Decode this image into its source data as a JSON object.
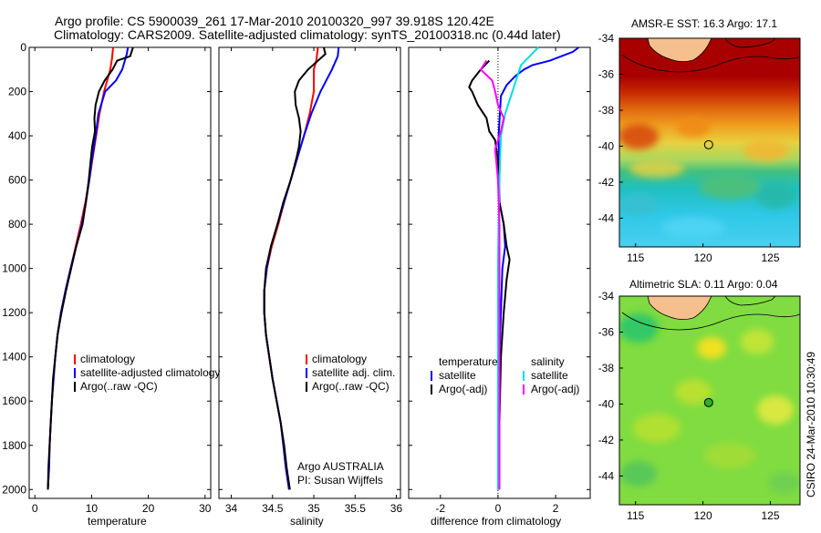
{
  "header": {
    "line1": "Argo profile: CS 5900039_261 17-Mar-2010 20100320_997 39.918S 120.42E",
    "line2": "Climatology: CARS2009. Satellite-adjusted climatology: synTS_20100318.nc (0.44d later)"
  },
  "colors": {
    "climatology": "#ff0000",
    "satellite": "#0000ff",
    "argo": "#000000",
    "sat_diff": "#00dede",
    "argo_sal_diff": "#ff00ff"
  },
  "credit": "CSIRO 24-Mar-2010 10:30:49",
  "chart_data": [
    {
      "id": "temperature",
      "type": "line",
      "xlabel": "temperature",
      "xlim": [
        -1,
        31
      ],
      "ylim": [
        2040,
        0
      ],
      "xticks": [
        "0",
        "10",
        "20",
        "30"
      ],
      "yticks": [
        "0",
        "200",
        "400",
        "600",
        "800",
        "1000",
        "1200",
        "1400",
        "1600",
        "1800",
        "2000"
      ],
      "legend": [
        {
          "color": "#ff0000",
          "label": "climatology"
        },
        {
          "color": "#0000ff",
          "label": "satellite-adjusted climatology"
        },
        {
          "color": "#000000",
          "label": "Argo(..raw -QC)"
        }
      ],
      "series": [
        {
          "name": "climatology",
          "color": "#ff0000",
          "points": [
            [
              13.8,
              0
            ],
            [
              13.6,
              50
            ],
            [
              13.3,
              100
            ],
            [
              12.2,
              200
            ],
            [
              11.4,
              300
            ],
            [
              10.8,
              400
            ],
            [
              10.2,
              500
            ],
            [
              9.6,
              600
            ],
            [
              8.9,
              700
            ],
            [
              8.1,
              800
            ],
            [
              7.2,
              900
            ],
            [
              6.3,
              1000
            ],
            [
              5.4,
              1100
            ],
            [
              4.6,
              1200
            ],
            [
              4.0,
              1300
            ],
            [
              3.6,
              1400
            ],
            [
              3.3,
              1500
            ],
            [
              3.0,
              1600
            ],
            [
              2.8,
              1700
            ],
            [
              2.6,
              1800
            ],
            [
              2.5,
              1900
            ],
            [
              2.3,
              2000
            ]
          ]
        },
        {
          "name": "satellite-adjusted climatology",
          "color": "#0000ff",
          "points": [
            [
              16.4,
              0
            ],
            [
              16.2,
              30
            ],
            [
              15.4,
              100
            ],
            [
              14.3,
              150
            ],
            [
              12.4,
              200
            ],
            [
              11.2,
              300
            ],
            [
              10.7,
              400
            ],
            [
              10.1,
              500
            ],
            [
              9.6,
              600
            ],
            [
              9.0,
              700
            ],
            [
              8.3,
              800
            ],
            [
              7.3,
              900
            ],
            [
              6.3,
              1000
            ],
            [
              5.4,
              1100
            ],
            [
              4.6,
              1200
            ],
            [
              4.0,
              1300
            ],
            [
              3.6,
              1400
            ],
            [
              3.3,
              1500
            ],
            [
              3.0,
              1600
            ],
            [
              2.8,
              1700
            ],
            [
              2.6,
              1800
            ],
            [
              2.5,
              1900
            ],
            [
              2.3,
              2000
            ]
          ]
        },
        {
          "name": "Argo(..raw -QC)",
          "color": "#000000",
          "points": [
            [
              17.3,
              0
            ],
            [
              16.8,
              40
            ],
            [
              14.5,
              60
            ],
            [
              13.7,
              100
            ],
            [
              12.3,
              150
            ],
            [
              11.3,
              200
            ],
            [
              10.7,
              260
            ],
            [
              10.5,
              320
            ],
            [
              10.6,
              380
            ],
            [
              10.1,
              450
            ],
            [
              9.8,
              520
            ],
            [
              9.5,
              600
            ],
            [
              9.0,
              700
            ],
            [
              8.4,
              800
            ],
            [
              7.3,
              900
            ],
            [
              6.4,
              1000
            ],
            [
              5.5,
              1100
            ],
            [
              4.7,
              1200
            ],
            [
              4.0,
              1300
            ],
            [
              3.6,
              1400
            ],
            [
              3.2,
              1500
            ],
            [
              3.0,
              1600
            ],
            [
              2.8,
              1700
            ],
            [
              2.6,
              1800
            ],
            [
              2.4,
              1900
            ],
            [
              2.3,
              2000
            ]
          ]
        }
      ]
    },
    {
      "id": "salinity",
      "type": "line",
      "xlabel": "salinity",
      "xlim": [
        33.85,
        36.05
      ],
      "ylim": [
        2040,
        0
      ],
      "xticks": [
        "34",
        "34.5",
        "35",
        "35.5",
        "36"
      ],
      "legend": [
        {
          "color": "#ff0000",
          "label": "climatology"
        },
        {
          "color": "#0000ff",
          "label": "satellite adj. clim."
        },
        {
          "color": "#000000",
          "label": "Argo(..raw -QC)"
        }
      ],
      "annotation": [
        "Argo AUSTRALIA",
        "PI: Susan Wijffels"
      ],
      "series": [
        {
          "name": "climatology",
          "color": "#ff0000",
          "points": [
            [
              35.05,
              0
            ],
            [
              35.03,
              60
            ],
            [
              35.0,
              100
            ],
            [
              35.0,
              200
            ],
            [
              34.95,
              300
            ],
            [
              34.88,
              400
            ],
            [
              34.8,
              500
            ],
            [
              34.72,
              600
            ],
            [
              34.64,
              700
            ],
            [
              34.57,
              800
            ],
            [
              34.49,
              900
            ],
            [
              34.43,
              1000
            ],
            [
              34.4,
              1100
            ],
            [
              34.4,
              1200
            ],
            [
              34.42,
              1300
            ],
            [
              34.46,
              1400
            ],
            [
              34.5,
              1500
            ],
            [
              34.55,
              1600
            ],
            [
              34.6,
              1700
            ],
            [
              34.63,
              1800
            ],
            [
              34.66,
              1900
            ],
            [
              34.7,
              2000
            ]
          ]
        },
        {
          "name": "satellite adj. clim.",
          "color": "#0000ff",
          "points": [
            [
              35.3,
              0
            ],
            [
              35.29,
              40
            ],
            [
              35.22,
              100
            ],
            [
              35.08,
              200
            ],
            [
              34.97,
              300
            ],
            [
              34.88,
              400
            ],
            [
              34.8,
              500
            ],
            [
              34.72,
              600
            ],
            [
              34.64,
              700
            ],
            [
              34.56,
              800
            ],
            [
              34.48,
              900
            ],
            [
              34.43,
              1000
            ],
            [
              34.4,
              1100
            ],
            [
              34.4,
              1200
            ],
            [
              34.42,
              1300
            ],
            [
              34.46,
              1400
            ],
            [
              34.5,
              1500
            ],
            [
              34.55,
              1600
            ],
            [
              34.6,
              1700
            ],
            [
              34.63,
              1800
            ],
            [
              34.66,
              1900
            ],
            [
              34.7,
              2000
            ]
          ]
        },
        {
          "name": "Argo(..raw -QC)",
          "color": "#000000",
          "points": [
            [
              35.12,
              0
            ],
            [
              35.14,
              30
            ],
            [
              35.05,
              60
            ],
            [
              34.93,
              100
            ],
            [
              34.82,
              150
            ],
            [
              34.77,
              200
            ],
            [
              34.78,
              260
            ],
            [
              34.82,
              320
            ],
            [
              34.84,
              380
            ],
            [
              34.82,
              450
            ],
            [
              34.79,
              500
            ],
            [
              34.72,
              600
            ],
            [
              34.63,
              700
            ],
            [
              34.56,
              800
            ],
            [
              34.48,
              900
            ],
            [
              34.42,
              1000
            ],
            [
              34.4,
              1100
            ],
            [
              34.4,
              1200
            ],
            [
              34.42,
              1300
            ],
            [
              34.46,
              1400
            ],
            [
              34.5,
              1500
            ],
            [
              34.55,
              1600
            ],
            [
              34.6,
              1700
            ],
            [
              34.64,
              1800
            ],
            [
              34.67,
              1900
            ],
            [
              34.71,
              2000
            ]
          ]
        }
      ]
    },
    {
      "id": "difference",
      "type": "line",
      "xlabel": "difference from climatology",
      "xlim": [
        -3.1,
        3.2
      ],
      "ylim": [
        2040,
        0
      ],
      "xticks": [
        "-2",
        "0",
        "2"
      ],
      "legend_left": {
        "title": "temperature",
        "items": [
          {
            "color": "#0000ff",
            "label": "satellite"
          },
          {
            "color": "#000000",
            "label": "Argo(-adj)"
          }
        ]
      },
      "legend_right": {
        "title": "salinity",
        "items": [
          {
            "color": "#00dede",
            "label": "satellite"
          },
          {
            "color": "#ff00ff",
            "label": "Argo(-adj)"
          }
        ]
      },
      "series": [
        {
          "name": "temperature satellite",
          "color": "#0000ff",
          "points": [
            [
              2.8,
              0
            ],
            [
              2.6,
              20
            ],
            [
              2.2,
              40
            ],
            [
              1.8,
              60
            ],
            [
              1.2,
              80
            ],
            [
              0.9,
              100
            ],
            [
              0.6,
              130
            ],
            [
              0.3,
              170
            ],
            [
              0.1,
              220
            ],
            [
              0.02,
              400
            ],
            [
              0.05,
              700
            ],
            [
              0.2,
              800
            ],
            [
              0.25,
              900
            ],
            [
              0.15,
              1000
            ],
            [
              0.1,
              1200
            ],
            [
              0.05,
              1400
            ],
            [
              0.05,
              1700
            ],
            [
              0.02,
              2000
            ]
          ]
        },
        {
          "name": "temperature Argo(-adj)",
          "color": "#000000",
          "points": [
            [
              -0.3,
              60
            ],
            [
              -0.6,
              100
            ],
            [
              -0.9,
              150
            ],
            [
              -1.0,
              180
            ],
            [
              -0.9,
              200
            ],
            [
              -0.7,
              260
            ],
            [
              -0.4,
              320
            ],
            [
              -0.3,
              380
            ],
            [
              -0.1,
              420
            ],
            [
              0.0,
              520
            ],
            [
              0.05,
              700
            ],
            [
              0.2,
              800
            ],
            [
              0.3,
              900
            ],
            [
              0.4,
              960
            ],
            [
              0.3,
              1050
            ],
            [
              0.2,
              1200
            ],
            [
              0.1,
              1400
            ],
            [
              0.05,
              1700
            ],
            [
              0.0,
              2000
            ]
          ]
        },
        {
          "name": "salinity satellite",
          "color": "#00dede",
          "points": [
            [
              1.4,
              0
            ],
            [
              1.1,
              40
            ],
            [
              0.8,
              80
            ],
            [
              0.7,
              120
            ],
            [
              0.5,
              200
            ],
            [
              0.25,
              300
            ],
            [
              0.1,
              400
            ],
            [
              0.05,
              600
            ],
            [
              0.02,
              800
            ],
            [
              0.0,
              1000
            ],
            [
              0.0,
              1400
            ],
            [
              0.0,
              2000
            ]
          ]
        },
        {
          "name": "salinity Argo(-adj)",
          "color": "#ff00ff",
          "points": [
            [
              -0.4,
              60
            ],
            [
              -0.6,
              100
            ],
            [
              -0.2,
              150
            ],
            [
              -0.1,
              200
            ],
            [
              0.0,
              260
            ],
            [
              0.2,
              320
            ],
            [
              0.1,
              380
            ],
            [
              0.0,
              420
            ],
            [
              -0.1,
              460
            ],
            [
              0.0,
              600
            ],
            [
              0.05,
              800
            ],
            [
              0.05,
              1000
            ],
            [
              0.05,
              1200
            ],
            [
              0.05,
              1500
            ],
            [
              0.05,
              1800
            ],
            [
              0.05,
              2000
            ]
          ]
        }
      ]
    },
    {
      "id": "sst_map",
      "type": "heatmap",
      "title": "AMSR-E SST: 16.3 Argo: 17.1",
      "xticks": [
        "115",
        "120",
        "125"
      ],
      "yticks": [
        "-34",
        "-36",
        "-38",
        "-40",
        "-42",
        "-44"
      ],
      "xlim": [
        113.8,
        127.2
      ],
      "ylim": [
        -45.6,
        -34
      ],
      "argo_marker": [
        120.42,
        -39.918
      ]
    },
    {
      "id": "sla_map",
      "type": "heatmap",
      "title": "Altimetric SLA: 0.11 Argo: 0.04",
      "xticks": [
        "115",
        "120",
        "125"
      ],
      "yticks": [
        "-34",
        "-36",
        "-38",
        "-40",
        "-42",
        "-44"
      ],
      "xlim": [
        113.8,
        127.2
      ],
      "ylim": [
        -45.6,
        -34
      ],
      "argo_marker": [
        120.42,
        -39.918
      ]
    }
  ]
}
